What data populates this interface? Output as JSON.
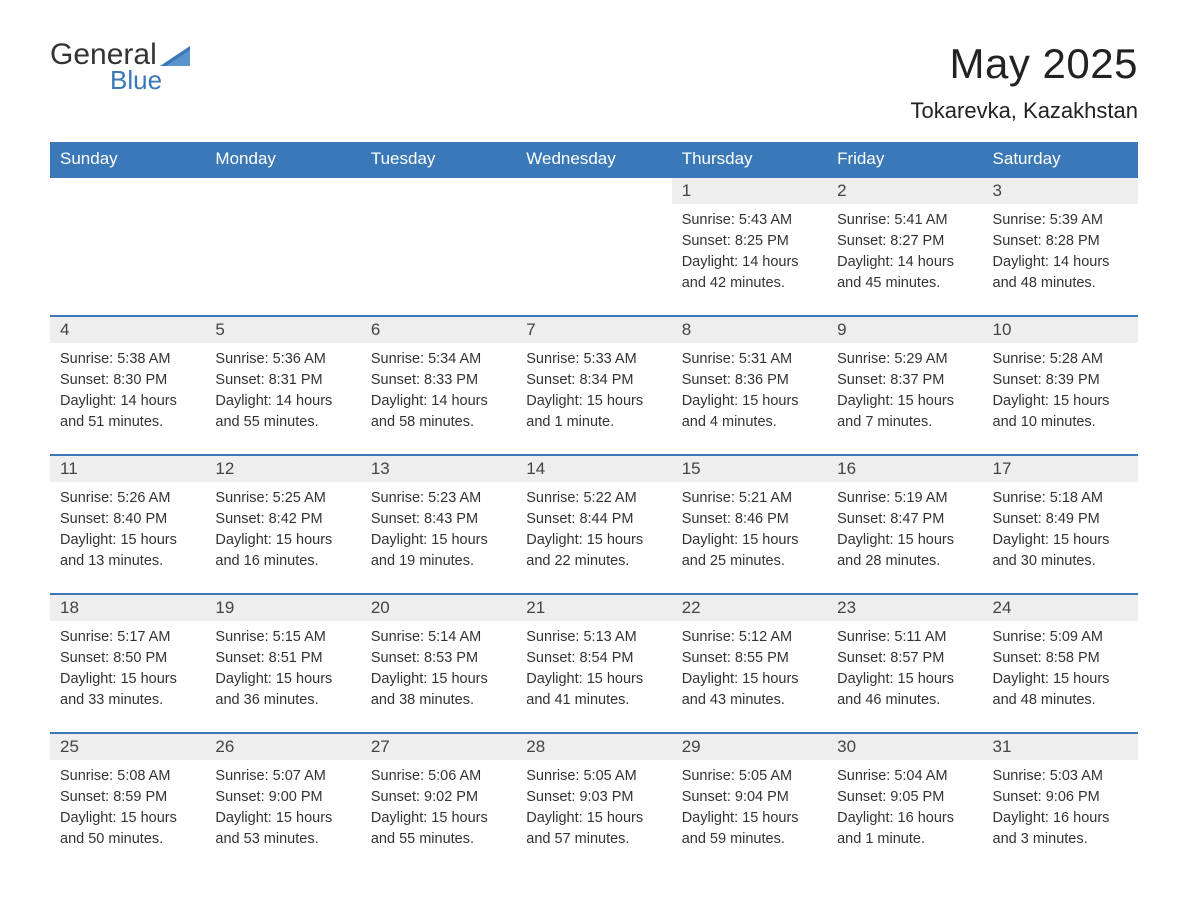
{
  "brand": {
    "name_a": "General",
    "name_b": "Blue",
    "logo_color": "#3a78b8"
  },
  "title": "May 2025",
  "location": "Tokarevka, Kazakhstan",
  "colors": {
    "header_bg": "#3a78b8",
    "header_text": "#ffffff",
    "stripe_bg": "#eeeeee",
    "rule": "#3a78b8",
    "body_text": "#333333",
    "page_bg": "#ffffff"
  },
  "day_headers": [
    "Sunday",
    "Monday",
    "Tuesday",
    "Wednesday",
    "Thursday",
    "Friday",
    "Saturday"
  ],
  "weeks": [
    [
      null,
      null,
      null,
      null,
      {
        "n": "1",
        "sunrise": "5:43 AM",
        "sunset": "8:25 PM",
        "daylight": "14 hours and 42 minutes."
      },
      {
        "n": "2",
        "sunrise": "5:41 AM",
        "sunset": "8:27 PM",
        "daylight": "14 hours and 45 minutes."
      },
      {
        "n": "3",
        "sunrise": "5:39 AM",
        "sunset": "8:28 PM",
        "daylight": "14 hours and 48 minutes."
      }
    ],
    [
      {
        "n": "4",
        "sunrise": "5:38 AM",
        "sunset": "8:30 PM",
        "daylight": "14 hours and 51 minutes."
      },
      {
        "n": "5",
        "sunrise": "5:36 AM",
        "sunset": "8:31 PM",
        "daylight": "14 hours and 55 minutes."
      },
      {
        "n": "6",
        "sunrise": "5:34 AM",
        "sunset": "8:33 PM",
        "daylight": "14 hours and 58 minutes."
      },
      {
        "n": "7",
        "sunrise": "5:33 AM",
        "sunset": "8:34 PM",
        "daylight": "15 hours and 1 minute."
      },
      {
        "n": "8",
        "sunrise": "5:31 AM",
        "sunset": "8:36 PM",
        "daylight": "15 hours and 4 minutes."
      },
      {
        "n": "9",
        "sunrise": "5:29 AM",
        "sunset": "8:37 PM",
        "daylight": "15 hours and 7 minutes."
      },
      {
        "n": "10",
        "sunrise": "5:28 AM",
        "sunset": "8:39 PM",
        "daylight": "15 hours and 10 minutes."
      }
    ],
    [
      {
        "n": "11",
        "sunrise": "5:26 AM",
        "sunset": "8:40 PM",
        "daylight": "15 hours and 13 minutes."
      },
      {
        "n": "12",
        "sunrise": "5:25 AM",
        "sunset": "8:42 PM",
        "daylight": "15 hours and 16 minutes."
      },
      {
        "n": "13",
        "sunrise": "5:23 AM",
        "sunset": "8:43 PM",
        "daylight": "15 hours and 19 minutes."
      },
      {
        "n": "14",
        "sunrise": "5:22 AM",
        "sunset": "8:44 PM",
        "daylight": "15 hours and 22 minutes."
      },
      {
        "n": "15",
        "sunrise": "5:21 AM",
        "sunset": "8:46 PM",
        "daylight": "15 hours and 25 minutes."
      },
      {
        "n": "16",
        "sunrise": "5:19 AM",
        "sunset": "8:47 PM",
        "daylight": "15 hours and 28 minutes."
      },
      {
        "n": "17",
        "sunrise": "5:18 AM",
        "sunset": "8:49 PM",
        "daylight": "15 hours and 30 minutes."
      }
    ],
    [
      {
        "n": "18",
        "sunrise": "5:17 AM",
        "sunset": "8:50 PM",
        "daylight": "15 hours and 33 minutes."
      },
      {
        "n": "19",
        "sunrise": "5:15 AM",
        "sunset": "8:51 PM",
        "daylight": "15 hours and 36 minutes."
      },
      {
        "n": "20",
        "sunrise": "5:14 AM",
        "sunset": "8:53 PM",
        "daylight": "15 hours and 38 minutes."
      },
      {
        "n": "21",
        "sunrise": "5:13 AM",
        "sunset": "8:54 PM",
        "daylight": "15 hours and 41 minutes."
      },
      {
        "n": "22",
        "sunrise": "5:12 AM",
        "sunset": "8:55 PM",
        "daylight": "15 hours and 43 minutes."
      },
      {
        "n": "23",
        "sunrise": "5:11 AM",
        "sunset": "8:57 PM",
        "daylight": "15 hours and 46 minutes."
      },
      {
        "n": "24",
        "sunrise": "5:09 AM",
        "sunset": "8:58 PM",
        "daylight": "15 hours and 48 minutes."
      }
    ],
    [
      {
        "n": "25",
        "sunrise": "5:08 AM",
        "sunset": "8:59 PM",
        "daylight": "15 hours and 50 minutes."
      },
      {
        "n": "26",
        "sunrise": "5:07 AM",
        "sunset": "9:00 PM",
        "daylight": "15 hours and 53 minutes."
      },
      {
        "n": "27",
        "sunrise": "5:06 AM",
        "sunset": "9:02 PM",
        "daylight": "15 hours and 55 minutes."
      },
      {
        "n": "28",
        "sunrise": "5:05 AM",
        "sunset": "9:03 PM",
        "daylight": "15 hours and 57 minutes."
      },
      {
        "n": "29",
        "sunrise": "5:05 AM",
        "sunset": "9:04 PM",
        "daylight": "15 hours and 59 minutes."
      },
      {
        "n": "30",
        "sunrise": "5:04 AM",
        "sunset": "9:05 PM",
        "daylight": "16 hours and 1 minute."
      },
      {
        "n": "31",
        "sunrise": "5:03 AM",
        "sunset": "9:06 PM",
        "daylight": "16 hours and 3 minutes."
      }
    ]
  ],
  "labels": {
    "sunrise": "Sunrise: ",
    "sunset": "Sunset: ",
    "daylight": "Daylight: "
  }
}
